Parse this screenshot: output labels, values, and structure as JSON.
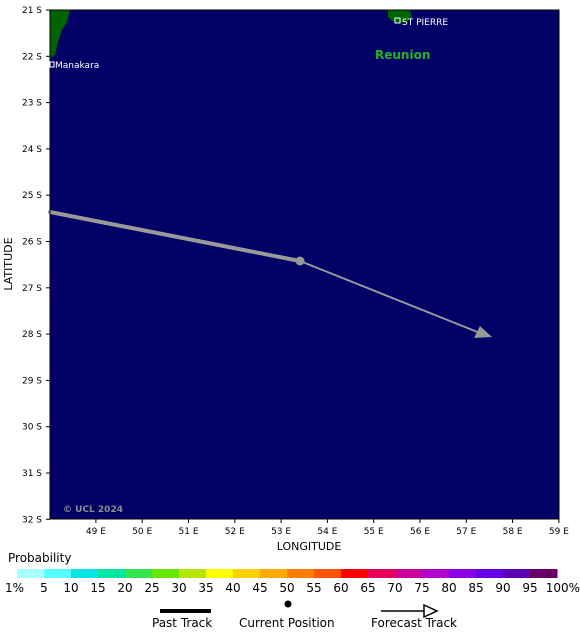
{
  "map": {
    "region_label": "Reunion",
    "places": [
      {
        "name": "Manakara"
      },
      {
        "name": "ST PIERRE"
      }
    ],
    "credit": "© UCL 2024",
    "lat_labels": [
      "21 S",
      "22 S",
      "23 S",
      "24 S",
      "25 S",
      "26 S",
      "27 S",
      "28 S",
      "29 S",
      "30 S",
      "31 S",
      "32 S"
    ],
    "lon_labels": [
      "49 E",
      "50 E",
      "51 E",
      "52 E",
      "53 E",
      "54 E",
      "55 E",
      "56 E",
      "57 E",
      "58 E",
      "59 E"
    ],
    "y_axis_title": "LATITUDE",
    "x_axis_title": "LONGITUDE",
    "colors": {
      "ocean": "#000066",
      "land": "#006400",
      "track": "#999999"
    }
  },
  "probability": {
    "title": "Probability",
    "labels": [
      "1%",
      "5",
      "10",
      "15",
      "20",
      "25",
      "30",
      "35",
      "40",
      "45",
      "50",
      "55",
      "60",
      "65",
      "70",
      "75",
      "80",
      "85",
      "90",
      "95",
      "100%"
    ],
    "colors": [
      "#aaffff",
      "#55ffff",
      "#00e6e6",
      "#00e6a0",
      "#33e64d",
      "#66e600",
      "#b3e600",
      "#ffff00",
      "#ffd000",
      "#ffaa00",
      "#ff7f00",
      "#ff5500",
      "#ff0000",
      "#e6005c",
      "#cc0099",
      "#b300cc",
      "#8c00e6",
      "#6600e6",
      "#5c00b3",
      "#660066"
    ]
  },
  "legend": {
    "past_track": "Past Track",
    "current_position": "Current Position",
    "forecast_track": "Forecast Track"
  }
}
